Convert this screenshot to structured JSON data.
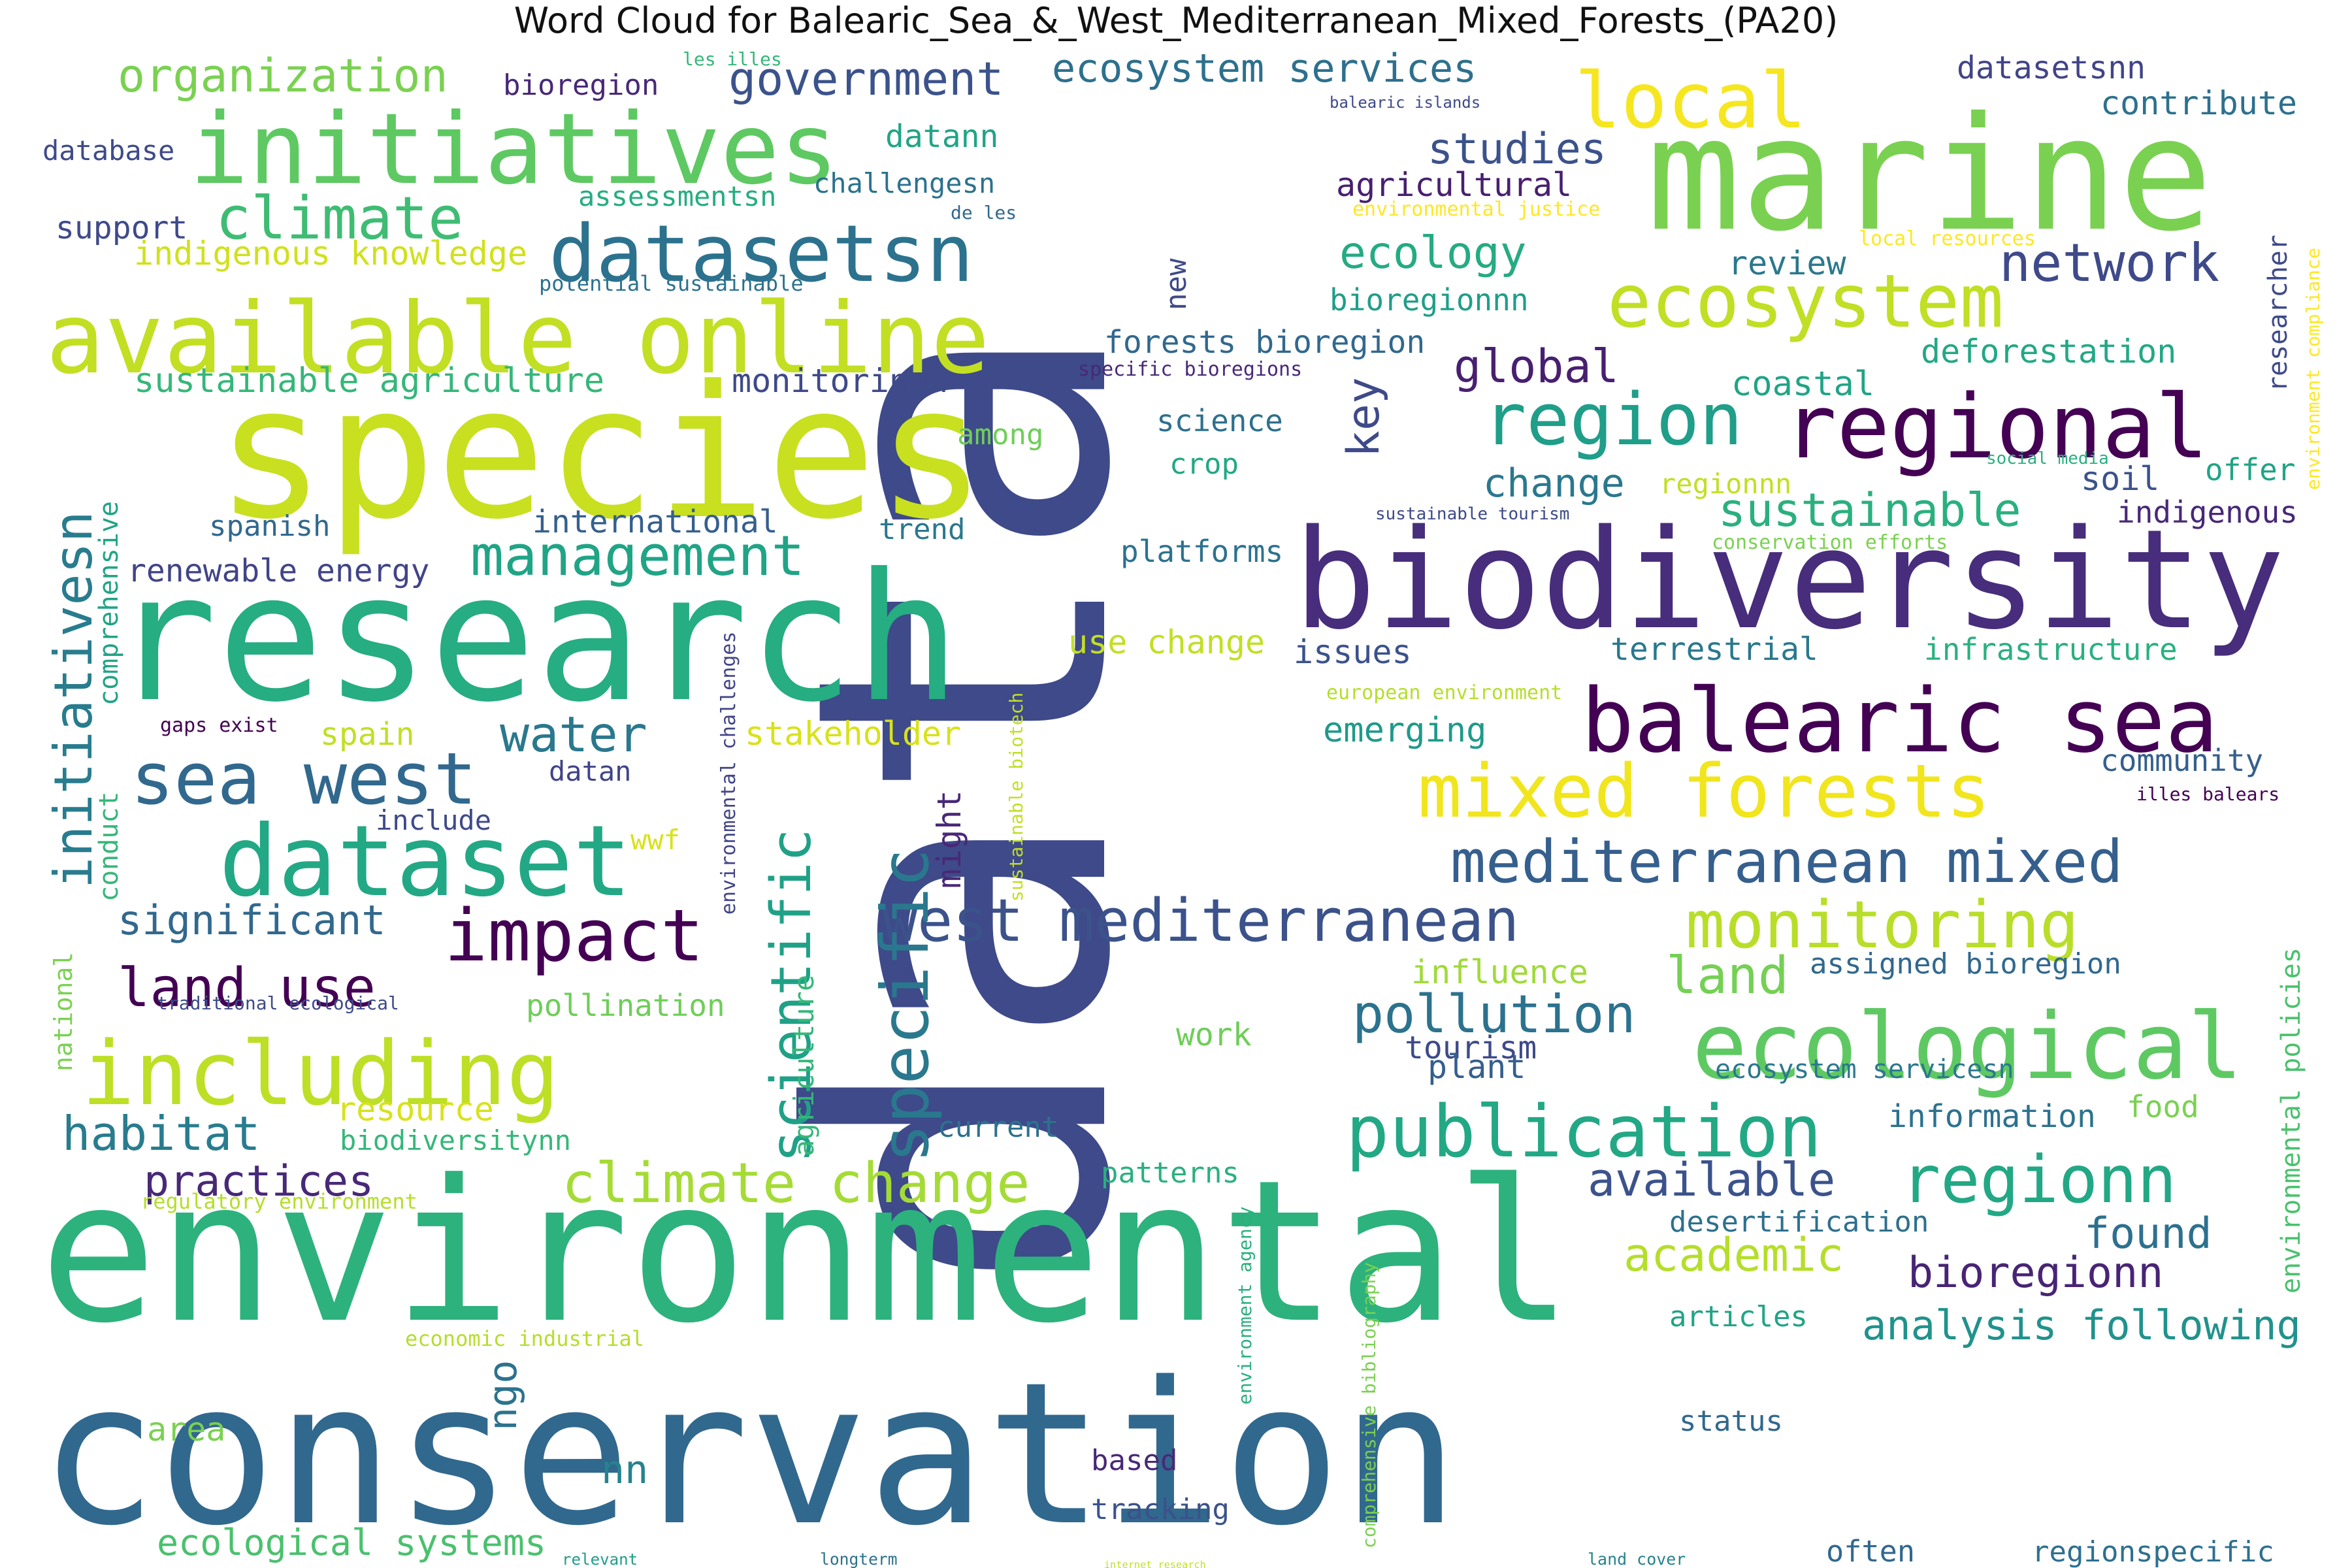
{
  "title": "Word Cloud for Balearic_Sea_&_West_Mediterranean_Mixed_Forests_(PA20)",
  "palette": {
    "dark_purple": "#440154",
    "purple": "#482878",
    "indigo": "#3e4a89",
    "blue": "#31688e",
    "teal": "#26828e",
    "green_teal": "#1f9e89",
    "green": "#35b779",
    "light_green": "#6ece58",
    "lime": "#b5de2b",
    "yellow": "#fde725"
  },
  "words": [
    {
      "text": "data",
      "color": "#3e4a89"
    },
    {
      "text": "conservation",
      "color": "#31688e"
    },
    {
      "text": "environmental",
      "color": "#2db27d"
    },
    {
      "text": "research",
      "color": "#26ad81"
    },
    {
      "text": "species",
      "color": "#c8e020"
    },
    {
      "text": "marine",
      "color": "#7ad151"
    },
    {
      "text": "biodiversity",
      "color": "#472d7b"
    },
    {
      "text": "available online",
      "color": "#c2df23"
    },
    {
      "text": "initiatives",
      "color": "#5ec962"
    },
    {
      "text": "balearic sea",
      "color": "#440154"
    },
    {
      "text": "ecological",
      "color": "#5ec962"
    },
    {
      "text": "regional",
      "color": "#440154"
    },
    {
      "text": "datasetsn",
      "color": "#2c728e"
    },
    {
      "text": "dataset",
      "color": "#22a884"
    },
    {
      "text": "including",
      "color": "#bddf26"
    },
    {
      "text": "publication",
      "color": "#22a884"
    },
    {
      "text": "mixed forests",
      "color": "#f1e51d"
    },
    {
      "text": "sea west",
      "color": "#31688e"
    },
    {
      "text": "region",
      "color": "#1f9e89"
    },
    {
      "text": "west mediterranean",
      "color": "#3b528b"
    },
    {
      "text": "mediterranean mixed",
      "color": "#355f8d"
    },
    {
      "text": "monitoring",
      "color": "#b8de29"
    },
    {
      "text": "ecosystem",
      "color": "#c0df25"
    },
    {
      "text": "local",
      "color": "#f6e620"
    },
    {
      "text": "impact",
      "color": "#440154"
    },
    {
      "text": "specific",
      "color": "#2a788e"
    },
    {
      "text": "regionn",
      "color": "#22a884"
    },
    {
      "text": "climate change",
      "color": "#a5db36"
    },
    {
      "text": "climate",
      "color": "#3fbc73"
    },
    {
      "text": "scientific",
      "color": "#1fa187"
    },
    {
      "text": "management",
      "color": "#20a486"
    },
    {
      "text": "initiativesn",
      "color": "#287c8e"
    },
    {
      "text": "organization",
      "color": "#7ad151"
    },
    {
      "text": "government",
      "color": "#3b528b"
    },
    {
      "text": "ecosystem services",
      "color": "#2d708e"
    },
    {
      "text": "pollution",
      "color": "#2c728e"
    },
    {
      "text": "land use",
      "color": "#440154"
    },
    {
      "text": "habitat",
      "color": "#287c8e"
    },
    {
      "text": "practices",
      "color": "#482878"
    },
    {
      "text": "network",
      "color": "#3e4a89"
    },
    {
      "text": "sustainable",
      "color": "#2ab07f"
    },
    {
      "text": "ecology",
      "color": "#25ab82"
    },
    {
      "text": "studies",
      "color": "#3b528b"
    },
    {
      "text": "global",
      "color": "#481f70"
    },
    {
      "text": "change",
      "color": "#2a788e"
    },
    {
      "text": "water",
      "color": "#2a788e"
    },
    {
      "text": "land",
      "color": "#75d054"
    },
    {
      "text": "available",
      "color": "#3b528b"
    },
    {
      "text": "academic",
      "color": "#b5de2b"
    },
    {
      "text": "bioregionn",
      "color": "#482475"
    },
    {
      "text": "analysis following",
      "color": "#20928c"
    },
    {
      "text": "found",
      "color": "#2d708e"
    },
    {
      "text": "significant",
      "color": "#31688e"
    },
    {
      "text": "key",
      "color": "#3e4a89"
    },
    {
      "text": "internet research",
      "color": "#c2df23"
    },
    {
      "text": "often",
      "color": "#31688e"
    },
    {
      "text": "relevant",
      "color": "#1f9e89"
    },
    {
      "text": "ecological systems",
      "color": "#4ac16d"
    },
    {
      "text": "sustainable agriculture",
      "color": "#35b779"
    },
    {
      "text": "indigenous knowledge",
      "color": "#d0e11c"
    },
    {
      "text": "forests bioregion",
      "color": "#31688e"
    },
    {
      "text": "deforestation",
      "color": "#22a884"
    },
    {
      "text": "monitoringn",
      "color": "#3e4a89"
    },
    {
      "text": "renewable energy",
      "color": "#414487"
    },
    {
      "text": "international",
      "color": "#355f8d"
    },
    {
      "text": "influence",
      "color": "#a0da39"
    },
    {
      "text": "emerging",
      "color": "#1f9a8a"
    },
    {
      "text": "stakeholder",
      "color": "#d8e219"
    },
    {
      "text": "use change",
      "color": "#c2df23"
    },
    {
      "text": "issues",
      "color": "#3b528b"
    },
    {
      "text": "terrestrial",
      "color": "#2a788e"
    },
    {
      "text": "infrastructure",
      "color": "#2ab07f"
    },
    {
      "text": "community",
      "color": "#355f8d"
    },
    {
      "text": "assigned bioregion",
      "color": "#31688e"
    },
    {
      "text": "information",
      "color": "#2c728e"
    },
    {
      "text": "food",
      "color": "#7ad151"
    },
    {
      "text": "coastal",
      "color": "#20a486"
    },
    {
      "text": "soil",
      "color": "#3b528b"
    },
    {
      "text": "indigenous",
      "color": "#482878"
    },
    {
      "text": "offer",
      "color": "#20a486"
    },
    {
      "text": "review",
      "color": "#2a788e"
    },
    {
      "text": "bioregionnn",
      "color": "#1f9e89"
    },
    {
      "text": "agricultural",
      "color": "#481f70"
    },
    {
      "text": "contribute",
      "color": "#2d708e"
    },
    {
      "text": "datasetsnn",
      "color": "#414487"
    },
    {
      "text": "bioregion",
      "color": "#482878"
    },
    {
      "text": "database",
      "color": "#3e4a89"
    },
    {
      "text": "support",
      "color": "#3e4a89"
    },
    {
      "text": "datann",
      "color": "#20a486"
    },
    {
      "text": "challengesn",
      "color": "#2c728e"
    },
    {
      "text": "assessmentsn",
      "color": "#26ad81"
    },
    {
      "text": "spanish",
      "color": "#31688e"
    },
    {
      "text": "trend",
      "color": "#2a788e"
    },
    {
      "text": "platforms",
      "color": "#2c728e"
    },
    {
      "text": "among",
      "color": "#6ece58"
    },
    {
      "text": "science",
      "color": "#2d708e"
    },
    {
      "text": "crop",
      "color": "#22a884"
    },
    {
      "text": "regionnn",
      "color": "#c2df23"
    },
    {
      "text": "spain",
      "color": "#c2df23"
    },
    {
      "text": "datan",
      "color": "#414487"
    },
    {
      "text": "include",
      "color": "#3e4a89"
    },
    {
      "text": "wwf",
      "color": "#d8e219"
    },
    {
      "text": "might",
      "color": "#482878"
    },
    {
      "text": "agriculture",
      "color": "#35b779"
    },
    {
      "text": "pollination",
      "color": "#6ece58"
    },
    {
      "text": "resource",
      "color": "#d8e219"
    },
    {
      "text": "biodiversitynn",
      "color": "#35b779"
    },
    {
      "text": "current",
      "color": "#2c728e"
    },
    {
      "text": "patterns",
      "color": "#2ab07f"
    },
    {
      "text": "work",
      "color": "#6ece58"
    },
    {
      "text": "tourism",
      "color": "#3e4a89"
    },
    {
      "text": "plant",
      "color": "#355f8d"
    },
    {
      "text": "ecosystem servicesn",
      "color": "#2a788e"
    },
    {
      "text": "desertification",
      "color": "#2d708e"
    },
    {
      "text": "articles",
      "color": "#20a486"
    },
    {
      "text": "area",
      "color": "#7ad151"
    },
    {
      "text": "ngo",
      "color": "#2c728e"
    },
    {
      "text": "nn",
      "color": "#26828e"
    },
    {
      "text": "based",
      "color": "#482878"
    },
    {
      "text": "tracking",
      "color": "#3b528b"
    },
    {
      "text": "status",
      "color": "#31688e"
    },
    {
      "text": "longterm",
      "color": "#2c728e"
    },
    {
      "text": "land cover",
      "color": "#26828e"
    },
    {
      "text": "regionspecific",
      "color": "#2d708e"
    },
    {
      "text": "new",
      "color": "#3e4a89"
    },
    {
      "text": "researcher",
      "color": "#3e4a89"
    },
    {
      "text": "comprehensive",
      "color": "#20a486"
    },
    {
      "text": "conduct",
      "color": "#35b779"
    },
    {
      "text": "national",
      "color": "#7ad151"
    },
    {
      "text": "environmental challenges",
      "color": "#414487"
    },
    {
      "text": "sustainable biotech",
      "color": "#c2df23"
    },
    {
      "text": "environmental policies",
      "color": "#4ac16d"
    },
    {
      "text": "comprehensive bibliography",
      "color": "#7ad151"
    },
    {
      "text": "environment agency",
      "color": "#2ab07f"
    },
    {
      "text": "environment compliance",
      "color": "#fde725"
    },
    {
      "text": "les illes",
      "color": "#35b779"
    },
    {
      "text": "balearic islands",
      "color": "#3e4a89"
    },
    {
      "text": "environmental justice",
      "color": "#fde725"
    },
    {
      "text": "de les",
      "color": "#31688e"
    },
    {
      "text": "local resources",
      "color": "#fde725"
    },
    {
      "text": "potential sustainable",
      "color": "#2c728e"
    },
    {
      "text": "specific bioregions",
      "color": "#482878"
    },
    {
      "text": "social media",
      "color": "#2ab07f"
    },
    {
      "text": "sustainable tourism",
      "color": "#3e4a89"
    },
    {
      "text": "conservation efforts",
      "color": "#7ad151"
    },
    {
      "text": "european environment",
      "color": "#b5de2b"
    },
    {
      "text": "illes balears",
      "color": "#440154"
    },
    {
      "text": "gaps exist",
      "color": "#440154"
    },
    {
      "text": "traditional ecological",
      "color": "#3e4a89"
    },
    {
      "text": "regulatory environment",
      "color": "#b5de2b"
    },
    {
      "text": "economic industrial",
      "color": "#b5de2b"
    }
  ]
}
